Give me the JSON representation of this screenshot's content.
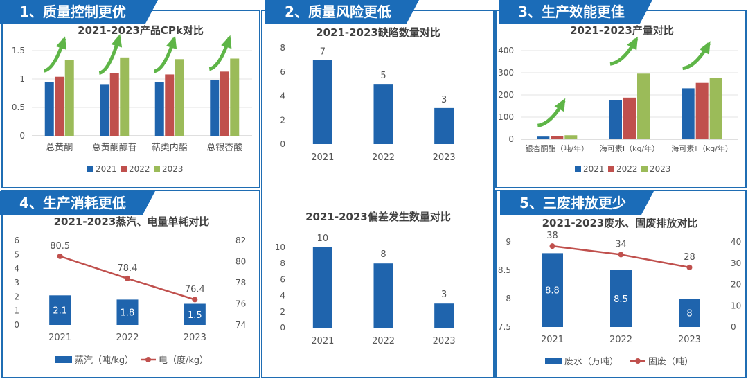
{
  "panels": {
    "p1": "1、质量控制更优",
    "p2": "2、质量风险更低",
    "p3": "3、生产效能更佳",
    "p4": "4、生产消耗更低",
    "p5": "5、三废排放更少"
  },
  "colors": {
    "blue": "#1f64ad",
    "red": "#c0504d",
    "green": "#9bbb59",
    "line": "#c0504d",
    "arrow": "#5eb547",
    "border": "#1f6db3"
  },
  "chart_data": [
    {
      "id": "cpk",
      "type": "bar",
      "title": "2021-2023产品CPk对比",
      "categories": [
        "总黄酮",
        "总黄酮醇苷",
        "萜类内酯",
        "总银杏酸"
      ],
      "series": [
        {
          "name": "2021",
          "values": [
            0.95,
            0.91,
            0.94,
            0.98
          ]
        },
        {
          "name": "2022",
          "values": [
            1.04,
            1.1,
            1.08,
            1.13
          ]
        },
        {
          "name": "2023",
          "values": [
            1.34,
            1.38,
            1.35,
            1.36
          ]
        }
      ],
      "ylim": [
        0,
        1.5
      ],
      "yticks": [
        "0",
        "0.5",
        "1",
        "1.5"
      ],
      "legend": "bottom"
    },
    {
      "id": "defect",
      "type": "bar",
      "title": "2021-2023缺陷数量对比",
      "categories": [
        "2021",
        "2022",
        "2023"
      ],
      "values": [
        7,
        5,
        3
      ],
      "labels": [
        "7",
        "5",
        "3"
      ],
      "ylim": [
        0,
        8
      ],
      "yticks": [
        "0",
        "2",
        "4",
        "6",
        "8"
      ]
    },
    {
      "id": "output",
      "type": "bar",
      "title": "2021-2023产量对比",
      "categories": [
        "银杏酮酯（吨/年）",
        "海可素Ⅰ（kg/年）",
        "海可素Ⅱ（kg/年）"
      ],
      "series": [
        {
          "name": "2021",
          "values": [
            12,
            177,
            230
          ]
        },
        {
          "name": "2022",
          "values": [
            15,
            188,
            254
          ]
        },
        {
          "name": "2023",
          "values": [
            18,
            296,
            276
          ]
        }
      ],
      "ylim": [
        0,
        400
      ],
      "yticks": [
        "0",
        "100",
        "200",
        "300",
        "400"
      ],
      "legend": "bottom"
    },
    {
      "id": "consumption",
      "type": "bar",
      "title": "2021-2023蒸汽、电量单耗对比",
      "categories": [
        "2021",
        "2022",
        "2023"
      ],
      "bar": {
        "name": "蒸汽（吨/kg）",
        "values": [
          2.1,
          1.8,
          1.5
        ],
        "labels": [
          "2.1",
          "1.8",
          "1.5"
        ]
      },
      "line": {
        "name": "电（度/kg）",
        "values": [
          80.5,
          78.4,
          76.4
        ],
        "labels": [
          "80.5",
          "78.4",
          "76.4"
        ]
      },
      "ylim": [
        0,
        6
      ],
      "yticks": [
        "0",
        "1",
        "2",
        "3",
        "4",
        "5",
        "6"
      ],
      "y2lim": [
        74,
        82
      ],
      "y2ticks": [
        "74",
        "76",
        "78",
        "80",
        "82"
      ],
      "legend": "bottom"
    },
    {
      "id": "deviation",
      "type": "bar",
      "title": "2021-2023偏差发生数量对比",
      "categories": [
        "2021",
        "2022",
        "2023"
      ],
      "values": [
        10,
        8,
        3
      ],
      "labels": [
        "10",
        "8",
        "3"
      ],
      "ylim": [
        0,
        10
      ],
      "yticks": [
        "0",
        "2",
        "4",
        "6",
        "8",
        "10"
      ]
    },
    {
      "id": "waste",
      "type": "bar",
      "title": "2021-2023废水、固废排放对比",
      "categories": [
        "2021",
        "2022",
        "2023"
      ],
      "bar": {
        "name": "废水（万吨）",
        "values": [
          8.8,
          8.5,
          8
        ],
        "labels": [
          "8.8",
          "8.5",
          "8"
        ]
      },
      "line": {
        "name": "固废（吨）",
        "values": [
          38,
          34,
          28
        ],
        "labels": [
          "38",
          "34",
          "28"
        ]
      },
      "ylim": [
        7.5,
        9
      ],
      "yticks": [
        "7.5",
        "8",
        "8.5",
        "9"
      ],
      "y2lim": [
        0,
        40
      ],
      "y2ticks": [
        "0",
        "10",
        "20",
        "30",
        "40"
      ],
      "legend": "bottom"
    }
  ]
}
